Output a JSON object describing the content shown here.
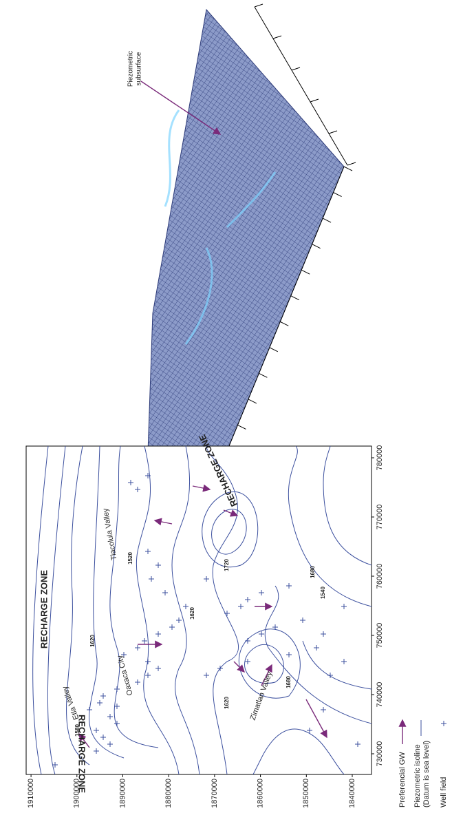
{
  "map": {
    "recharge_zones": [
      "RECHARGE ZONE",
      "RECHARGE ZONE",
      "RECHARGE ZONE"
    ],
    "places": [
      "Etla Valley",
      "Oaxaca City",
      "Tlacolula Valley",
      "Zimatlan Valley"
    ],
    "contour_labels": [
      "1580",
      "1620",
      "1620",
      "1520",
      "1620",
      "1680",
      "1720",
      "1680",
      "1540"
    ],
    "xticks": [
      730000,
      740000,
      750000,
      760000,
      770000,
      780000
    ],
    "yticks": [
      1840000,
      1850000,
      1860000,
      1870000,
      1880000,
      1890000,
      1900000,
      1910000
    ]
  },
  "legend": {
    "preferential": "Preferencial GW",
    "isoline": [
      "Piezometric isoline",
      "(Datum is sea level)"
    ],
    "well": "Well field"
  },
  "surface": {
    "label": [
      "Piezometric",
      "subsurface"
    ]
  }
}
